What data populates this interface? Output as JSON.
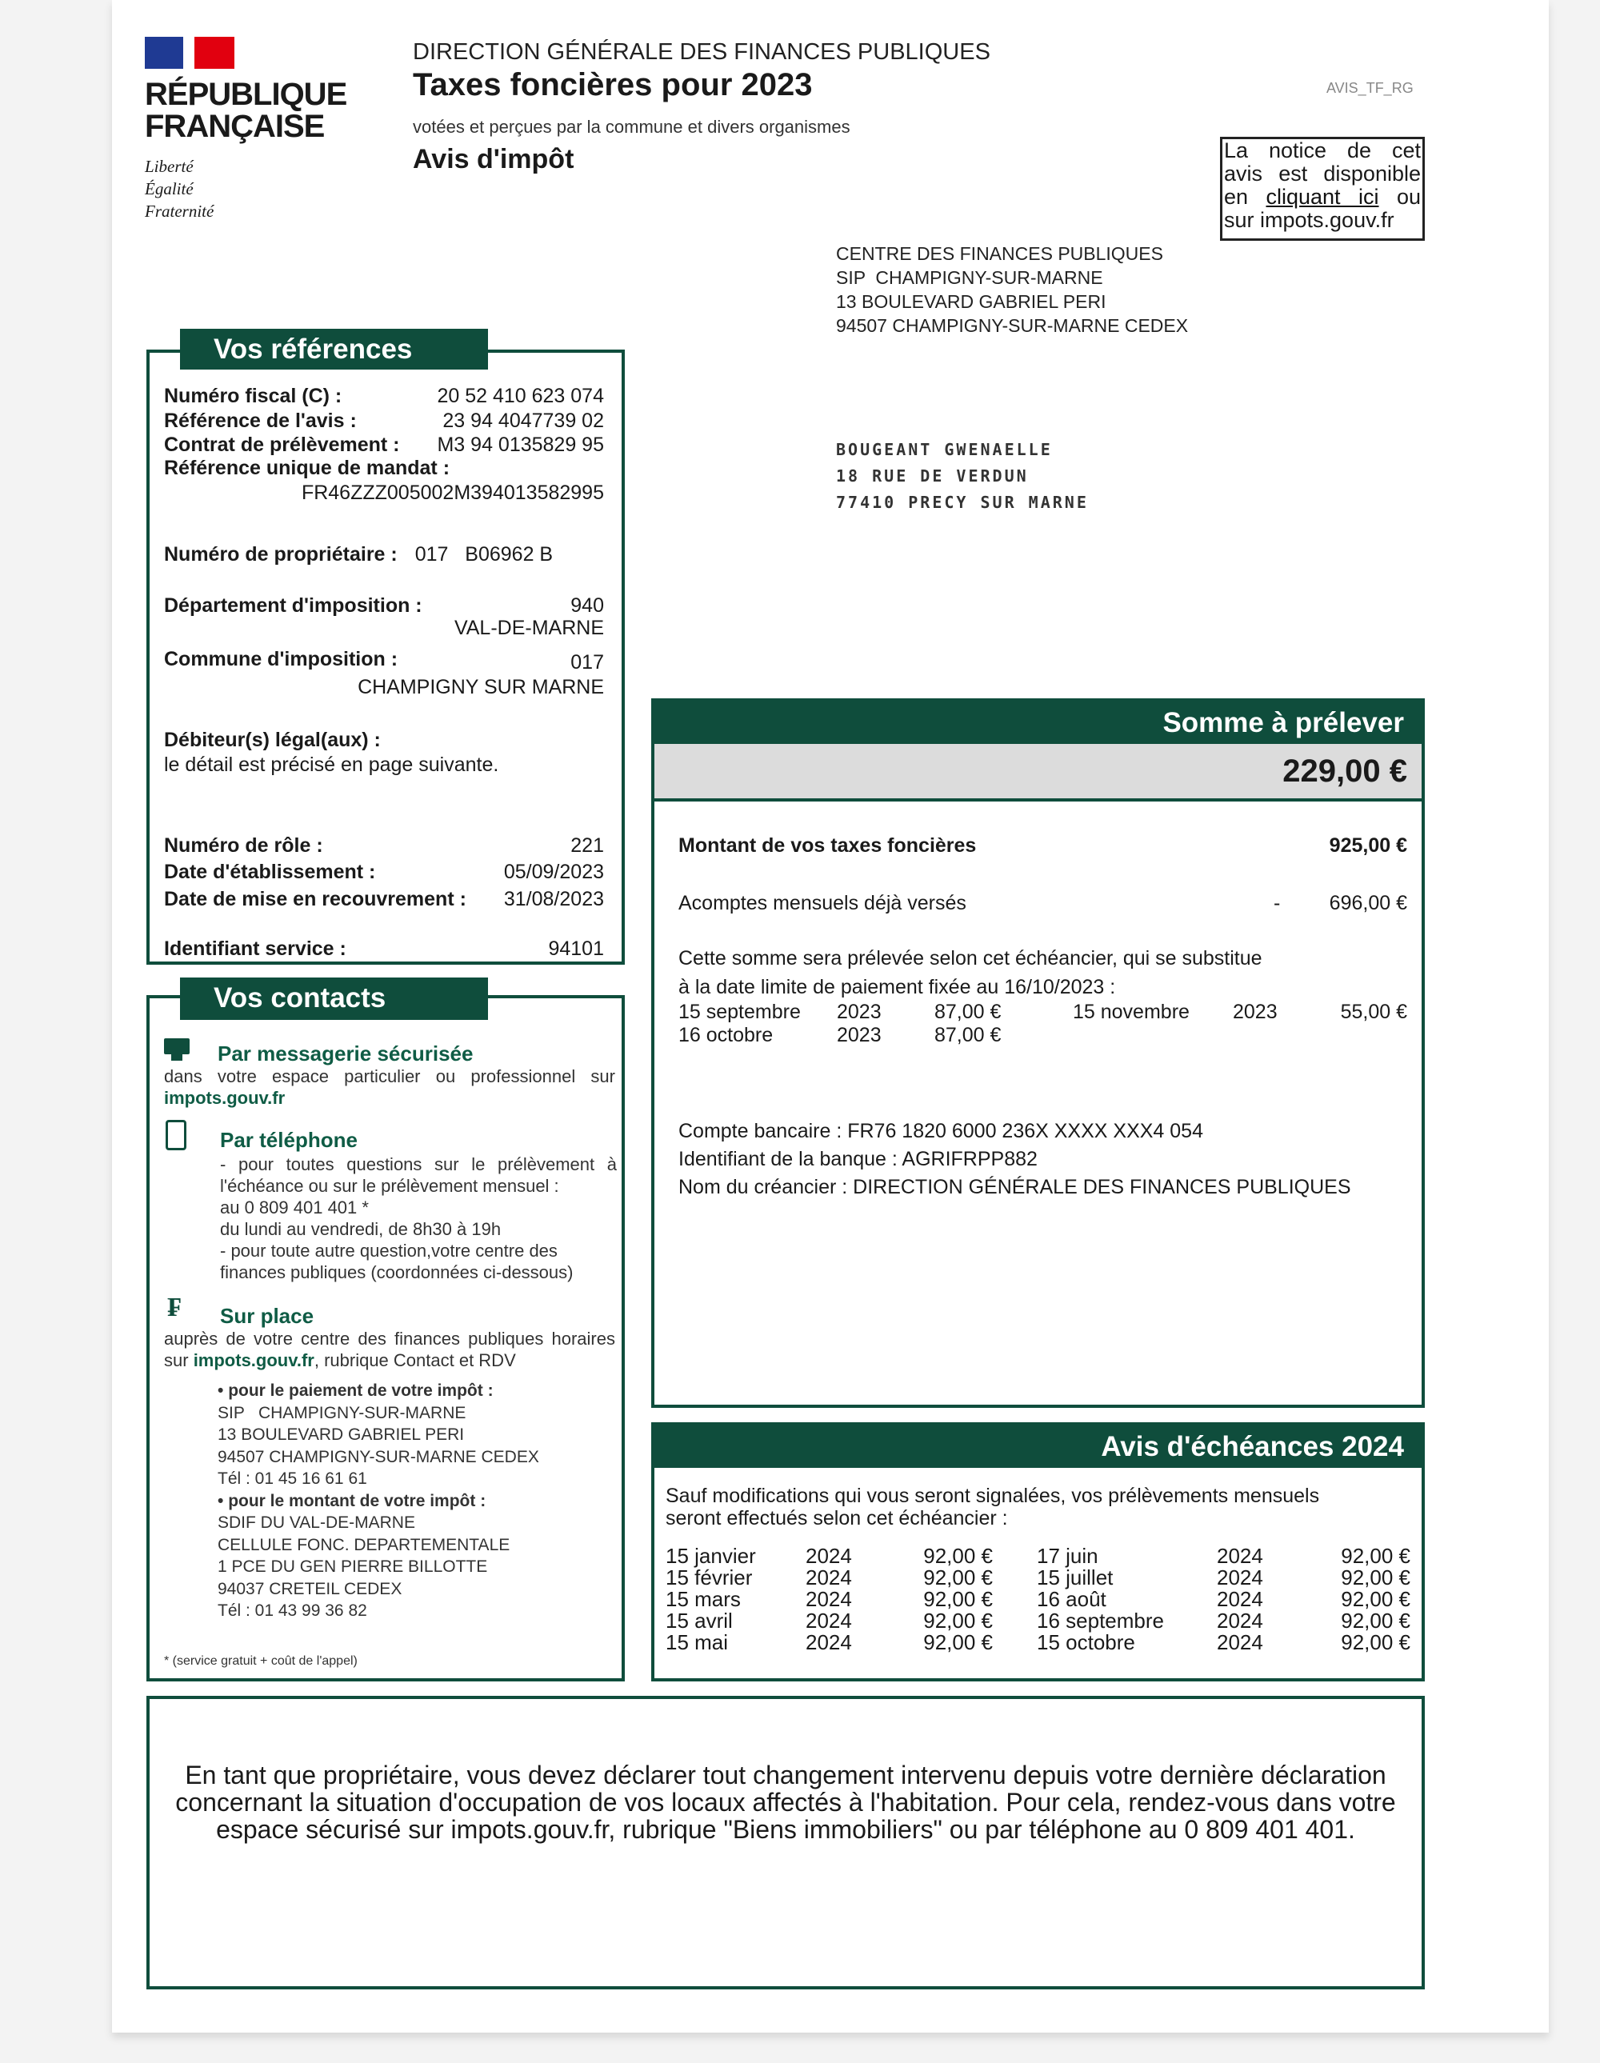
{
  "logo": {
    "line1": "RÉPUBLIQUE",
    "line2": "FRANÇAISE",
    "motto": [
      "Liberté",
      "Égalité",
      "Fraternité"
    ]
  },
  "header": {
    "org": "DIRECTION GÉNÉRALE DES FINANCES PUBLIQUES",
    "title": "Taxes foncières pour 2023",
    "subtitle": "votées et perçues par la commune et divers organismes",
    "doc_type": "Avis d'impôt",
    "code": "AVIS_TF_RG"
  },
  "notice": {
    "pre": "La notice de cet avis est disponible en ",
    "link": "cliquant ici",
    "post": " ou sur impots.gouv.fr"
  },
  "sender": [
    "CENTRE DES FINANCES PUBLIQUES",
    "SIP  CHAMPIGNY-SUR-MARNE",
    "13 BOULEVARD GABRIEL PERI",
    "94507 CHAMPIGNY-SUR-MARNE CEDEX"
  ],
  "recipient": [
    "BOUGEANT GWENAELLE",
    "18 RUE DE VERDUN",
    "77410 PRECY SUR MARNE"
  ],
  "references": {
    "title": "Vos références",
    "numero_fiscal": {
      "label": "Numéro fiscal (C) :",
      "value": "20 52 410 623 074"
    },
    "reference_avis": {
      "label": "Référence de l'avis :",
      "value": "23 94 4047739 02"
    },
    "contrat": {
      "label": "Contrat de prélèvement :",
      "value": "M3 94 0135829 95"
    },
    "rum": {
      "label": "Référence unique de mandat :",
      "value": "FR46ZZZ005002M394013582995"
    },
    "proprietaire": {
      "label": "Numéro de propriétaire :",
      "value": "017   B06962 B"
    },
    "departement": {
      "label": "Département d'imposition :",
      "code": "940",
      "name": "VAL-DE-MARNE"
    },
    "commune": {
      "label": "Commune d'imposition :",
      "code": "017",
      "name": "CHAMPIGNY SUR MARNE"
    },
    "debiteurs": {
      "label": "Débiteur(s) légal(aux) :",
      "value": "le détail est précisé en page suivante."
    },
    "role": {
      "label": "Numéro de rôle :",
      "value": "221"
    },
    "etablissement": {
      "label": "Date d'établissement :",
      "value": "05/09/2023"
    },
    "recouvrement": {
      "label": "Date de mise en recouvrement :",
      "value": "31/08/2023"
    },
    "service": {
      "label": "Identifiant service :",
      "value": "94101"
    }
  },
  "contacts": {
    "title": "Vos contacts",
    "messagerie": {
      "title": "Par messagerie sécurisée",
      "text": "dans votre espace particulier ou professionnel sur",
      "link": "impots.gouv.fr"
    },
    "telephone": {
      "title": "Par téléphone",
      "lines": [
        "- pour toutes questions sur le prélèvement à l'échéance ou sur le prélèvement mensuel :",
        "au 0 809 401 401 *",
        "du lundi au vendredi, de 8h30 à 19h",
        "- pour toute autre question,votre centre des finances publiques (coordonnées ci-dessous)"
      ]
    },
    "sur_place": {
      "title": "Sur place",
      "text1": "auprès de votre centre des finances publiques horaires sur ",
      "link": "impots.gouv.fr",
      "text2": ", rubrique Contact et RDV"
    },
    "paiement": {
      "title": "pour le paiement de votre impôt :",
      "lines": [
        "SIP   CHAMPIGNY-SUR-MARNE",
        "13 BOULEVARD GABRIEL PERI",
        "94507 CHAMPIGNY-SUR-MARNE CEDEX",
        "Tél : 01 45 16 61 61"
      ]
    },
    "montant": {
      "title": "pour le montant de votre impôt :",
      "lines": [
        "SDIF DU VAL-DE-MARNE",
        "CELLULE FONC. DEPARTEMENTALE",
        "1 PCE DU GEN PIERRE BILLOTTE",
        "94037 CRETEIL CEDEX",
        "Tél : 01 43 99 36 82"
      ]
    },
    "footnote": "* (service gratuit + coût de l'appel)"
  },
  "somme": {
    "title": "Somme à prélever",
    "amount": "229,00 €",
    "montant": {
      "label": "Montant de vos taxes foncières",
      "value": "925,00 €"
    },
    "acomptes": {
      "label": "Acomptes mensuels déjà versés",
      "sign": "-",
      "value": "696,00 €"
    },
    "intro": [
      "Cette somme sera prélevée selon cet échéancier, qui se substitue",
      "à la date limite de paiement fixée au 16/10/2023 :"
    ],
    "schedule": [
      {
        "date": "15 septembre",
        "year": "2023",
        "amount": "87,00 €"
      },
      {
        "date": "16 octobre",
        "year": "2023",
        "amount": "87,00 €"
      },
      {
        "date": "15 novembre",
        "year": "2023",
        "amount": "55,00 €"
      }
    ],
    "bank": [
      "Compte bancaire : FR76 1820 6000 236X XXXX XXX4 054",
      "Identifiant de la banque : AGRIFRPP882",
      "Nom du créancier : DIRECTION GÉNÉRALE DES FINANCES PUBLIQUES"
    ]
  },
  "echeances": {
    "title": "Avis d'échéances 2024",
    "intro": [
      "Sauf modifications qui vous seront signalées, vos prélèvements mensuels",
      "seront effectués selon cet échéancier :"
    ],
    "rows": [
      {
        "date": "15 janvier",
        "year": "2024",
        "amount": "92,00 €"
      },
      {
        "date": "15 février",
        "year": "2024",
        "amount": "92,00 €"
      },
      {
        "date": "15 mars",
        "year": "2024",
        "amount": "92,00 €"
      },
      {
        "date": "15 avril",
        "year": "2024",
        "amount": "92,00 €"
      },
      {
        "date": "15 mai",
        "year": "2024",
        "amount": "92,00 €"
      },
      {
        "date": "17 juin",
        "year": "2024",
        "amount": "92,00 €"
      },
      {
        "date": "15 juillet",
        "year": "2024",
        "amount": "92,00 €"
      },
      {
        "date": "16 août",
        "year": "2024",
        "amount": "92,00 €"
      },
      {
        "date": "16 septembre",
        "year": "2024",
        "amount": "92,00 €"
      },
      {
        "date": "15 octobre",
        "year": "2024",
        "amount": "92,00 €"
      }
    ]
  },
  "footer_notice": [
    "En tant que propriétaire, vous devez déclarer tout changement intervenu depuis votre dernière déclaration",
    "concernant la situation d'occupation de vos locaux affectés à l'habitation. Pour cela, rendez-vous dans votre",
    "espace sécurisé sur impots.gouv.fr, rubrique \"Biens immobiliers\" ou par téléphone au 0 809 401 401."
  ],
  "colors": {
    "green": "#0f4d3c",
    "flag_blue": "#1f3a93",
    "flag_red": "#e1000f",
    "amount_bg": "#dcdcdc"
  }
}
